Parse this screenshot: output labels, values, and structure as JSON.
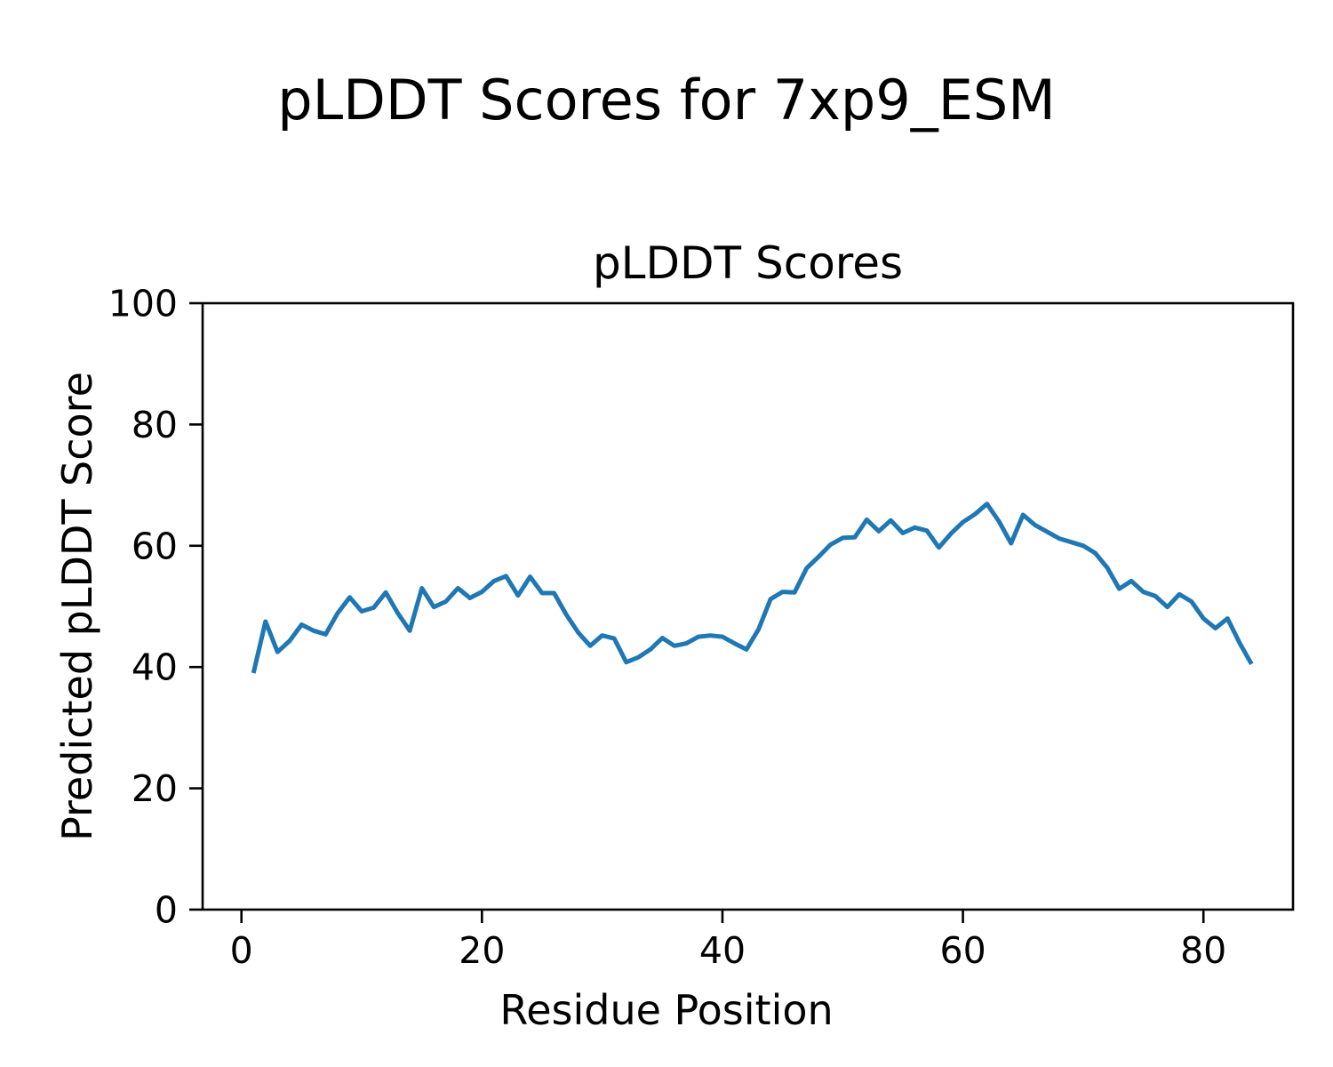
{
  "figure": {
    "suptitle": "pLDDT Scores for 7xp9_ESM"
  },
  "chart_data": {
    "type": "line",
    "title": "pLDDT Scores",
    "xlabel": "Residue Position",
    "ylabel": "Predicted pLDDT Score",
    "grid": false,
    "legend": "none",
    "line_color": "#1f77b4",
    "axis_color": "#000000",
    "xlim": [
      -3.23,
      87.45
    ],
    "ylim": [
      0,
      100
    ],
    "xticks": [
      0,
      20,
      40,
      60,
      80
    ],
    "yticks": [
      0,
      20,
      40,
      60,
      80,
      100
    ],
    "x": [
      1,
      2,
      3,
      4,
      5,
      6,
      7,
      8,
      9,
      10,
      11,
      12,
      13,
      14,
      15,
      16,
      17,
      18,
      19,
      20,
      21,
      22,
      23,
      24,
      25,
      26,
      27,
      28,
      29,
      30,
      31,
      32,
      33,
      34,
      35,
      36,
      37,
      38,
      39,
      40,
      41,
      42,
      43,
      44,
      45,
      46,
      47,
      48,
      49,
      50,
      51,
      52,
      53,
      54,
      55,
      56,
      57,
      58,
      59,
      60,
      61,
      62,
      63,
      64,
      65,
      66,
      67,
      68,
      69,
      70,
      71,
      72,
      73,
      74,
      75,
      76,
      77,
      78,
      79,
      80,
      81,
      82,
      83,
      84
    ],
    "series": [
      {
        "name": "pLDDT",
        "values": [
          39.0,
          47.5,
          42.5,
          44.3,
          47.0,
          46.0,
          45.4,
          48.9,
          51.5,
          49.2,
          49.8,
          52.3,
          48.9,
          46.0,
          53.0,
          49.9,
          50.8,
          53.0,
          51.4,
          52.4,
          54.2,
          55.0,
          51.8,
          54.9,
          52.2,
          52.2,
          48.7,
          45.7,
          43.5,
          45.2,
          44.7,
          40.8,
          41.6,
          42.9,
          44.8,
          43.5,
          43.9,
          45.0,
          45.2,
          45.0,
          43.9,
          42.9,
          46.2,
          51.2,
          52.4,
          52.3,
          56.3,
          58.2,
          60.2,
          61.3,
          61.4,
          64.3,
          62.4,
          64.2,
          62.1,
          63.0,
          62.5,
          59.7,
          62.0,
          63.9,
          65.2,
          66.9,
          64.0,
          60.4,
          65.1,
          63.4,
          62.3,
          61.2,
          60.6,
          60.0,
          58.8,
          56.4,
          52.9,
          54.2,
          52.4,
          51.7,
          49.9,
          52.0,
          50.8,
          48.0,
          46.4,
          48.0,
          44.0,
          40.5
        ]
      }
    ]
  }
}
